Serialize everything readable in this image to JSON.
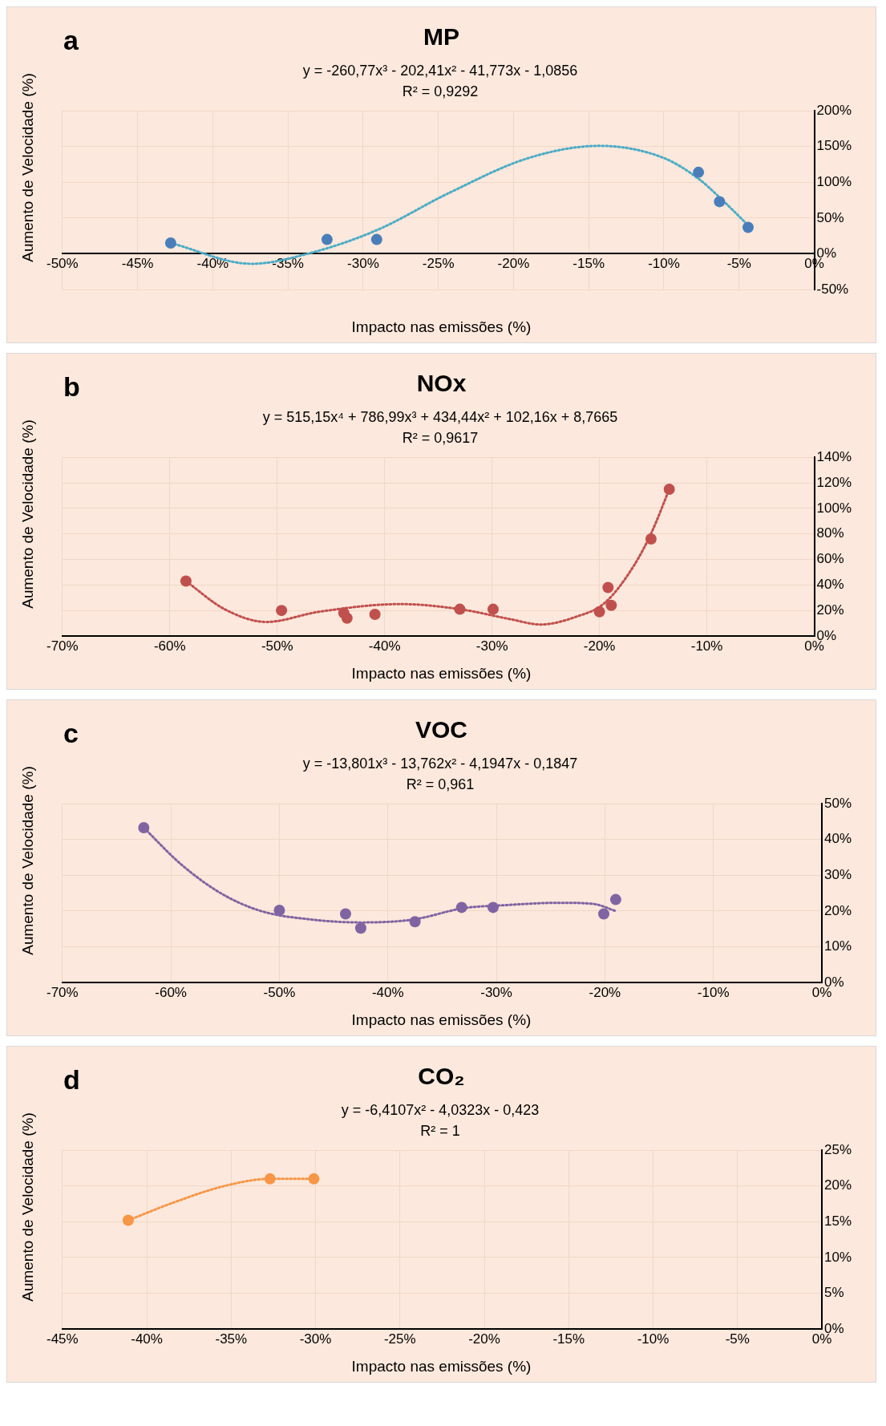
{
  "chart_data": [
    {
      "type": "scatter",
      "title": "MP",
      "xlabel": "Impacto nas emissões (%)",
      "ylabel": "Aumento de Velocidade (%)",
      "annotations": [
        "a",
        "y = -260,77x³ - 202,41x² - 41,773x - 1,0856",
        "R² = 0,9292"
      ],
      "xlim": [
        -50,
        0
      ],
      "xticks": [
        {
          "value": -50,
          "label": "-50%"
        },
        {
          "value": -45,
          "label": "-45%"
        },
        {
          "value": -40,
          "label": "-40%"
        },
        {
          "value": -35,
          "label": "-35%"
        },
        {
          "value": -30,
          "label": "-30%"
        },
        {
          "value": -25,
          "label": "-25%"
        },
        {
          "value": -20,
          "label": "-20%"
        },
        {
          "value": -15,
          "label": "-15%"
        },
        {
          "value": -10,
          "label": "-10%"
        },
        {
          "value": -5,
          "label": "-5%"
        },
        {
          "value": 0,
          "label": "0%"
        }
      ],
      "ylim": [
        -50,
        200
      ],
      "yticks": [
        {
          "value": -50,
          "label": "-50%"
        },
        {
          "value": 0,
          "label": "0%"
        },
        {
          "value": 50,
          "label": "50%"
        },
        {
          "value": 100,
          "label": "100%"
        },
        {
          "value": 150,
          "label": "150%"
        },
        {
          "value": 200,
          "label": "200%"
        }
      ],
      "grid": true,
      "legend": false,
      "series": [
        {
          "type": "line",
          "marker": "none",
          "line_style": "dotted",
          "color": "#4bacc6",
          "x": [
            -42.8,
            -37.4,
            -33.7,
            -29.1,
            -24.3,
            -19.0,
            -14.3,
            -10.0,
            -7.7,
            -6.3,
            -4.4
          ],
          "values": [
            15,
            -14,
            0,
            33,
            85,
            134,
            151,
            134,
            105,
            79,
            40
          ]
        },
        {
          "type": "scatter",
          "marker": "circle",
          "color": "#4a7ebb",
          "x": [
            -42.8,
            -32.4,
            -29.1,
            -7.7,
            -6.3,
            -4.4
          ],
          "values": [
            15,
            20,
            20,
            114,
            73,
            37
          ]
        }
      ]
    },
    {
      "type": "scatter",
      "title": "NOx",
      "xlabel": "Impacto nas emissões (%)",
      "ylabel": "Aumento de Velocidade (%)",
      "annotations": [
        "b",
        "y = 515,15x⁴ + 786,99x³ + 434,44x² + 102,16x + 8,7665",
        "R² = 0,9617"
      ],
      "xlim": [
        -70,
        0
      ],
      "xticks": [
        {
          "value": -70,
          "label": "-70%"
        },
        {
          "value": -60,
          "label": "-60%"
        },
        {
          "value": -50,
          "label": "-50%"
        },
        {
          "value": -40,
          "label": "-40%"
        },
        {
          "value": -30,
          "label": "-30%"
        },
        {
          "value": -20,
          "label": "-20%"
        },
        {
          "value": -10,
          "label": "-10%"
        },
        {
          "value": 0,
          "label": "0%"
        }
      ],
      "ylim": [
        0,
        140
      ],
      "yticks": [
        {
          "value": 0,
          "label": "0%"
        },
        {
          "value": 20,
          "label": "20%"
        },
        {
          "value": 40,
          "label": "40%"
        },
        {
          "value": 60,
          "label": "60%"
        },
        {
          "value": 80,
          "label": "80%"
        },
        {
          "value": 100,
          "label": "100%"
        },
        {
          "value": 120,
          "label": "120%"
        },
        {
          "value": 140,
          "label": "140%"
        }
      ],
      "grid": true,
      "legend": false,
      "series": [
        {
          "type": "line",
          "marker": "none",
          "line_style": "dotted",
          "color": "#c0504d",
          "x": [
            -58.5,
            -54.9,
            -51.0,
            -46.1,
            -38.5,
            -33.0,
            -28.2,
            -25.5,
            -22.2,
            -19.5,
            -16.8,
            -15.1,
            -13.5
          ],
          "values": [
            43,
            21,
            11,
            19,
            25,
            21,
            13,
            9,
            15,
            26,
            55,
            82,
            115
          ]
        },
        {
          "type": "scatter",
          "marker": "circle",
          "color": "#c0504d",
          "x": [
            -58.5,
            -49.6,
            -43.8,
            -43.5,
            -40.9,
            -33.0,
            -29.9,
            -20.0,
            -19.2,
            -18.9,
            -15.2,
            -13.5
          ],
          "values": [
            43,
            20,
            18,
            14,
            17,
            21,
            21,
            19,
            38,
            24,
            76,
            115
          ]
        }
      ]
    },
    {
      "type": "scatter",
      "title": "VOC",
      "xlabel": "Impacto nas emissões (%)",
      "ylabel": "Aumento de Velocidade (%)",
      "annotations": [
        "c",
        "y = -13,801x³ - 13,762x² - 4,1947x - 0,1847",
        "R² = 0,961"
      ],
      "xlim": [
        -70,
        0
      ],
      "xticks": [
        {
          "value": -70,
          "label": "-70%"
        },
        {
          "value": -60,
          "label": "-60%"
        },
        {
          "value": -50,
          "label": "-50%"
        },
        {
          "value": -40,
          "label": "-40%"
        },
        {
          "value": -30,
          "label": "-30%"
        },
        {
          "value": -20,
          "label": "-20%"
        },
        {
          "value": -10,
          "label": "-10%"
        },
        {
          "value": 0,
          "label": "0%"
        }
      ],
      "ylim": [
        0,
        50
      ],
      "yticks": [
        {
          "value": 0,
          "label": "0%"
        },
        {
          "value": 10,
          "label": "10%"
        },
        {
          "value": 20,
          "label": "20%"
        },
        {
          "value": 30,
          "label": "30%"
        },
        {
          "value": 40,
          "label": "40%"
        },
        {
          "value": 50,
          "label": "50%"
        }
      ],
      "grid": true,
      "legend": false,
      "series": [
        {
          "type": "line",
          "marker": "none",
          "line_style": "dotted",
          "color": "#8064a2",
          "x": [
            -62.5,
            -59.0,
            -55.3,
            -51.7,
            -47.0,
            -42.4,
            -37.7,
            -33.0,
            -29.4,
            -24.2,
            -21.1,
            -19.0
          ],
          "values": [
            43.3,
            32.9,
            24.8,
            20.0,
            17.6,
            16.8,
            17.6,
            20.8,
            21.6,
            22.3,
            22.0,
            20.0
          ]
        },
        {
          "type": "scatter",
          "marker": "circle",
          "color": "#8064a2",
          "x": [
            -62.5,
            -50.0,
            -43.9,
            -42.5,
            -37.5,
            -33.2,
            -30.3,
            -20.1,
            -19.0
          ],
          "values": [
            43.3,
            20.2,
            19.2,
            15.2,
            17.0,
            21.0,
            21.0,
            19.2,
            23.2
          ]
        }
      ]
    },
    {
      "type": "scatter",
      "title": "CO₂",
      "xlabel": "Impacto nas emissões (%)",
      "ylabel": "Aumento de Velocidade (%)",
      "annotations": [
        "d",
        "y = -6,4107x² - 4,0323x - 0,423",
        "R² = 1"
      ],
      "xlim": [
        -45,
        0
      ],
      "xticks": [
        {
          "value": -45,
          "label": "-45%"
        },
        {
          "value": -40,
          "label": "-40%"
        },
        {
          "value": -35,
          "label": "-35%"
        },
        {
          "value": -30,
          "label": "-30%"
        },
        {
          "value": -25,
          "label": "-25%"
        },
        {
          "value": -20,
          "label": "-20%"
        },
        {
          "value": -15,
          "label": "-15%"
        },
        {
          "value": -10,
          "label": "-10%"
        },
        {
          "value": -5,
          "label": "-5%"
        },
        {
          "value": 0,
          "label": "0%"
        }
      ],
      "ylim": [
        0,
        25
      ],
      "yticks": [
        {
          "value": 0,
          "label": "0%"
        },
        {
          "value": 5,
          "label": "5%"
        },
        {
          "value": 10,
          "label": "10%"
        },
        {
          "value": 15,
          "label": "15%"
        },
        {
          "value": 20,
          "label": "20%"
        },
        {
          "value": 25,
          "label": "25%"
        }
      ],
      "grid": true,
      "legend": false,
      "series": [
        {
          "type": "line",
          "marker": "none",
          "line_style": "dotted",
          "color": "#f79646",
          "x": [
            -41.1,
            -38.4,
            -35.4,
            -32.7,
            -30.1
          ],
          "values": [
            15.2,
            17.7,
            20.0,
            21.0,
            21.0
          ]
        },
        {
          "type": "scatter",
          "marker": "circle",
          "color": "#f79646",
          "x": [
            -41.1,
            -32.7,
            -30.1
          ],
          "values": [
            15.2,
            21.0,
            21.0
          ]
        }
      ]
    }
  ]
}
